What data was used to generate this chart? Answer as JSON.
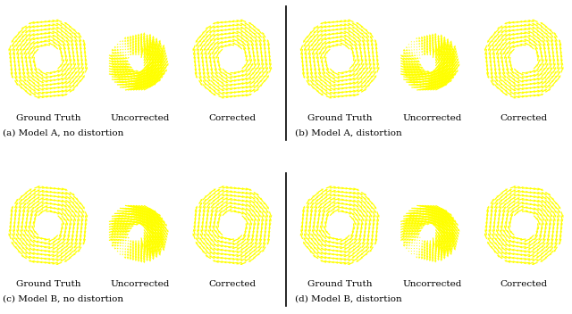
{
  "bg_color": "#000000",
  "arrow_color": "#ffff00",
  "outer_r": 1.0,
  "inner_r": 0.28,
  "n_grid": 22,
  "col_labels": [
    "Ground Truth",
    "Uncorrected",
    "Corrected"
  ],
  "panel_captions": [
    "(a) Model A, no distortion",
    "(b) Model A, distortion",
    "(c) Model B, no distortion",
    "(d) Model B, distortion"
  ],
  "trans_no_dist": [
    0.55,
    0.4
  ],
  "trans_dist": [
    0.5,
    0.35
  ],
  "font_size": 7.5,
  "caption_font_size": 7.5
}
